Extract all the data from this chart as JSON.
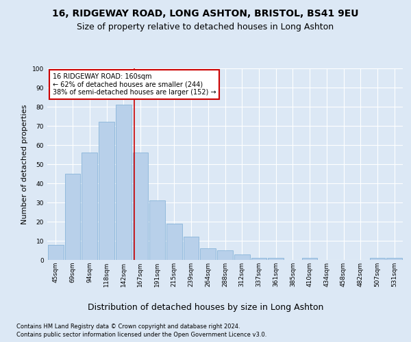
{
  "title1": "16, RIDGEWAY ROAD, LONG ASHTON, BRISTOL, BS41 9EU",
  "title2": "Size of property relative to detached houses in Long Ashton",
  "xlabel": "Distribution of detached houses by size in Long Ashton",
  "ylabel": "Number of detached properties",
  "footer1": "Contains HM Land Registry data © Crown copyright and database right 2024.",
  "footer2": "Contains public sector information licensed under the Open Government Licence v3.0.",
  "annotation_line1": "16 RIDGEWAY ROAD: 160sqm",
  "annotation_line2": "← 62% of detached houses are smaller (244)",
  "annotation_line3": "38% of semi-detached houses are larger (152) →",
  "bar_labels": [
    "45sqm",
    "69sqm",
    "94sqm",
    "118sqm",
    "142sqm",
    "167sqm",
    "191sqm",
    "215sqm",
    "239sqm",
    "264sqm",
    "288sqm",
    "312sqm",
    "337sqm",
    "361sqm",
    "385sqm",
    "410sqm",
    "434sqm",
    "458sqm",
    "482sqm",
    "507sqm",
    "531sqm"
  ],
  "bar_values": [
    8,
    45,
    56,
    72,
    81,
    56,
    31,
    19,
    12,
    6,
    5,
    3,
    1,
    1,
    0,
    1,
    0,
    0,
    0,
    1,
    1
  ],
  "bar_color": "#b8d0ea",
  "bar_edge_color": "#7bacd4",
  "vline_x": 4.62,
  "vline_color": "#cc0000",
  "annotation_box_color": "#cc0000",
  "fig_bg_color": "#dce8f5",
  "plot_bg_color": "#dce8f5",
  "ylim": [
    0,
    100
  ],
  "yticks": [
    0,
    10,
    20,
    30,
    40,
    50,
    60,
    70,
    80,
    90,
    100
  ],
  "title1_fontsize": 10,
  "title2_fontsize": 9,
  "annotation_fontsize": 7,
  "ylabel_fontsize": 8,
  "xlabel_fontsize": 9,
  "footer_fontsize": 6,
  "tick_fontsize": 6.5
}
